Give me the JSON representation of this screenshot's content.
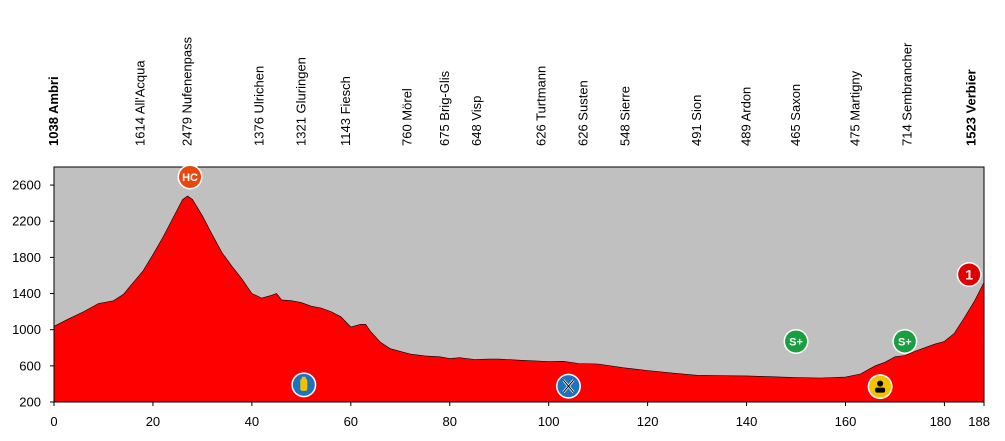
{
  "chart_data": {
    "type": "area",
    "title": "",
    "xlabel": "",
    "ylabel": "",
    "xlim": [
      0,
      188
    ],
    "ylim": [
      200,
      2800
    ],
    "x_ticks": [
      0,
      20,
      40,
      60,
      80,
      100,
      120,
      140,
      160,
      180,
      188
    ],
    "y_ticks": [
      200,
      600,
      1000,
      1400,
      1800,
      2200,
      2600
    ],
    "colors": {
      "plot_bg": "#c0c0c0",
      "area": "#ff0000",
      "axis": "#000000"
    },
    "profile": {
      "x": [
        0,
        3,
        6,
        9,
        12,
        14,
        16,
        18,
        20,
        22,
        24,
        26,
        27,
        28,
        30,
        32,
        34,
        36,
        38,
        40,
        42,
        44,
        45,
        46,
        48,
        50,
        52,
        54,
        56,
        58,
        60,
        62,
        63,
        64,
        66,
        68,
        70,
        72,
        75,
        78,
        80,
        82,
        85,
        88,
        90,
        95,
        100,
        103,
        106,
        110,
        115,
        120,
        125,
        130,
        135,
        140,
        145,
        150,
        155,
        160,
        163,
        166,
        168,
        170,
        172,
        174,
        176,
        178,
        180,
        182,
        184,
        186,
        188
      ],
      "elev": [
        1038,
        1120,
        1200,
        1290,
        1320,
        1390,
        1520,
        1650,
        1830,
        2020,
        2230,
        2440,
        2479,
        2440,
        2260,
        2050,
        1850,
        1700,
        1560,
        1400,
        1350,
        1380,
        1400,
        1330,
        1321,
        1300,
        1260,
        1240,
        1200,
        1143,
        1030,
        1060,
        1060,
        980,
        860,
        790,
        760,
        730,
        710,
        700,
        680,
        690,
        670,
        675,
        675,
        660,
        648,
        650,
        626,
        620,
        580,
        548,
        520,
        495,
        491,
        489,
        480,
        470,
        465,
        475,
        510,
        600,
        640,
        700,
        714,
        760,
        800,
        840,
        870,
        960,
        1130,
        1310,
        1523
      ]
    },
    "places": [
      {
        "km": 0,
        "label": "1038 Ambri",
        "bold": true
      },
      {
        "km": 17.5,
        "label": "1614 All'Acqua",
        "bold": false
      },
      {
        "km": 27,
        "label": "2479 Nufenenpass",
        "bold": false
      },
      {
        "km": 41.5,
        "label": "1376 Ulrichen",
        "bold": false
      },
      {
        "km": 50,
        "label": "1321 Gluringen",
        "bold": false
      },
      {
        "km": 59,
        "label": "1143 Fiesch",
        "bold": false
      },
      {
        "km": 71.5,
        "label": "760 Mörel",
        "bold": false
      },
      {
        "km": 79,
        "label": "675 Brig-Glis",
        "bold": false
      },
      {
        "km": 85.5,
        "label": "648 Visp",
        "bold": false
      },
      {
        "km": 98.5,
        "label": "626 Turtmann",
        "bold": false
      },
      {
        "km": 107,
        "label": "626 Susten",
        "bold": false
      },
      {
        "km": 115.5,
        "label": "548 Sierre",
        "bold": false
      },
      {
        "km": 130,
        "label": "491 Sion",
        "bold": false
      },
      {
        "km": 140,
        "label": "489 Ardon",
        "bold": false
      },
      {
        "km": 150,
        "label": "465 Saxon",
        "bold": false
      },
      {
        "km": 162,
        "label": "475 Martigny",
        "bold": false
      },
      {
        "km": 172.5,
        "label": "714 Sembrancher",
        "bold": false
      },
      {
        "km": 185.5,
        "label": "1523 Verbier",
        "bold": true
      }
    ],
    "markers": [
      {
        "type": "climb-hc",
        "label": "HC",
        "km": 27.5,
        "elev": 2690,
        "color": "#e8470e"
      },
      {
        "type": "feed-zone",
        "label": "",
        "km": 50.5,
        "elev": 390,
        "color": "#1e73be"
      },
      {
        "type": "intermediate-sprint",
        "label": "",
        "km": 104,
        "elev": 375,
        "color": "#1e73be"
      },
      {
        "type": "sprint",
        "label": "S+",
        "km": 150,
        "elev": 870,
        "color": "#1a9e3f"
      },
      {
        "type": "sprint",
        "label": "S+",
        "km": 172,
        "elev": 870,
        "color": "#1a9e3f"
      },
      {
        "type": "water",
        "label": "",
        "km": 167,
        "elev": 370,
        "color": "#f2c200"
      },
      {
        "type": "climb-1",
        "label": "1",
        "km": 185,
        "elev": 1610,
        "color": "#e10000"
      }
    ]
  }
}
